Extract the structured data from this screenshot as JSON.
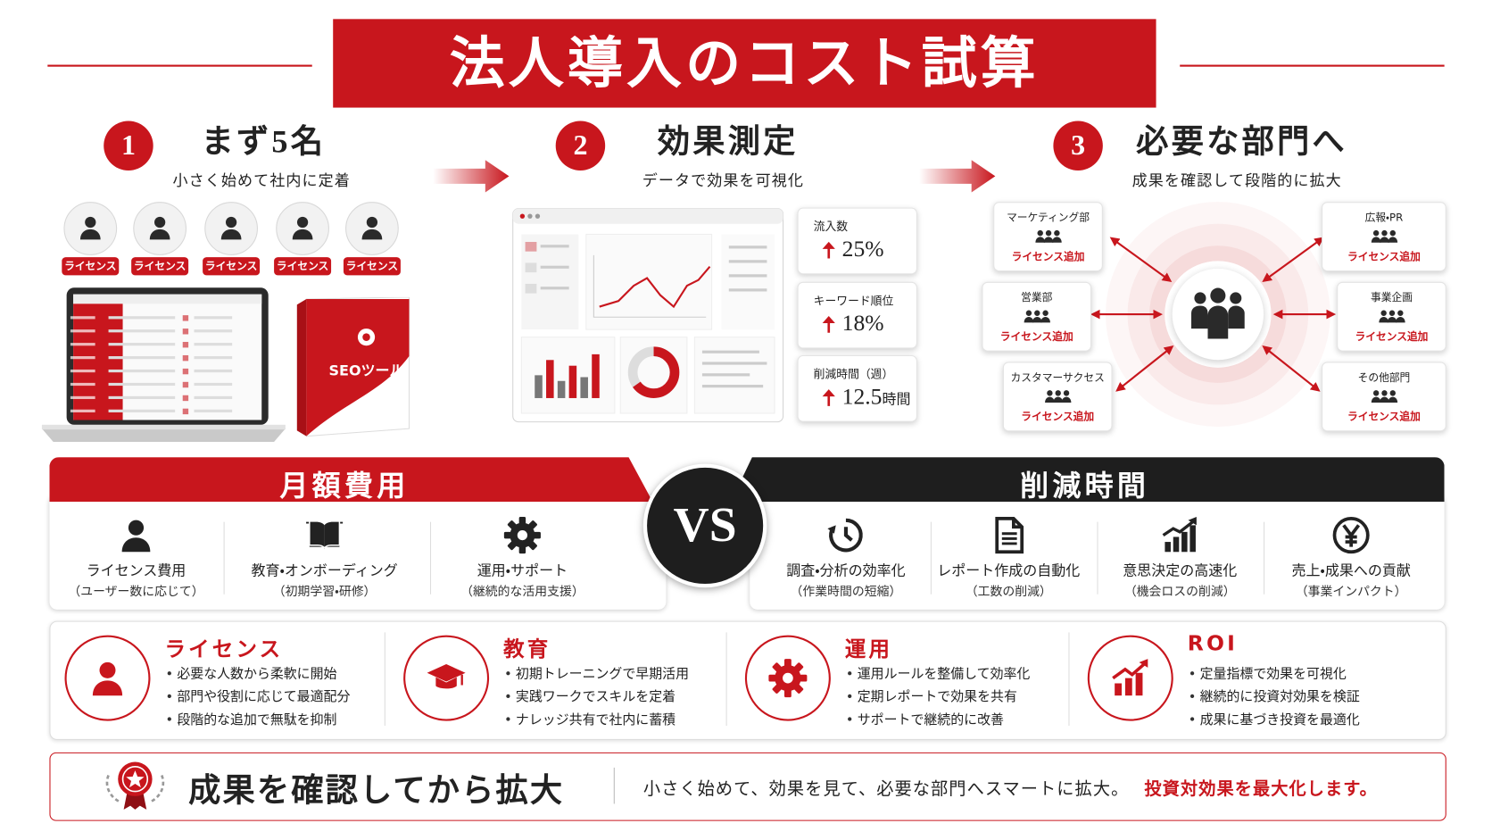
{
  "title": "法人導入のコスト試算",
  "steps": [
    {
      "number": "1",
      "title": "まず5名",
      "subtitle": "小さく始めて社内に定着",
      "licenses": [
        "ライセンス",
        "ライセンス",
        "ライセンス",
        "ライセンス",
        "ライセンス"
      ],
      "product": "SEOツール"
    },
    {
      "number": "2",
      "title": "効果測定",
      "subtitle": "データで効果を可視化",
      "metrics": [
        {
          "label": "流入数",
          "value": "25%"
        },
        {
          "label": "キーワード順位",
          "value": "18%"
        },
        {
          "label": "削減時間（週）",
          "value": "12.5",
          "unit": "時間"
        }
      ]
    },
    {
      "number": "3",
      "title": "必要な部門へ",
      "subtitle": "成果を確認して段階的に拡大",
      "departments": [
        {
          "name": "マーケティング部",
          "action": "ライセンス追加"
        },
        {
          "name": "広報・PR",
          "action": "ライセンス追加"
        },
        {
          "name": "営業部",
          "action": "ライセンス追加"
        },
        {
          "name": "事業企画",
          "action": "ライセンス追加"
        },
        {
          "name": "カスタマーサクセス",
          "action": "ライセンス追加"
        },
        {
          "name": "その他部門",
          "action": "ライセンス追加"
        }
      ]
    }
  ],
  "comparison": {
    "cost": {
      "title": "月額費用",
      "items": [
        {
          "label": "ライセンス費用",
          "note": "（ユーザー数に応じて）"
        },
        {
          "label": "教育・オンボーディング",
          "note": "（初期学習・研修）"
        },
        {
          "label": "運用・サポート",
          "note": "（継続的な活用支援）"
        }
      ]
    },
    "vs": "VS",
    "savings": {
      "title": "削減時間",
      "items": [
        {
          "label": "調査・分析の効率化",
          "note": "（作業時間の短縮）"
        },
        {
          "label": "レポート作成の自動化",
          "note": "（工数の削減）"
        },
        {
          "label": "意思決定の高速化",
          "note": "（機会ロスの削減）"
        },
        {
          "label": "売上・成果への貢献",
          "note": "（事業インパクト）"
        }
      ]
    }
  },
  "details": [
    {
      "title": "ライセンス",
      "points": [
        "必要な人数から柔軟に開始",
        "部門や役割に応じて最適配分",
        "段階的な追加で無駄を抑制"
      ]
    },
    {
      "title": "教育",
      "points": [
        "初期トレーニングで早期活用",
        "実践ワークでスキルを定着",
        "ナレッジ共有で社内に蓄積"
      ]
    },
    {
      "title": "運用",
      "points": [
        "運用ルールを整備して効率化",
        "定期レポートで効果を共有",
        "サポートで継続的に改善"
      ]
    },
    {
      "title": "ROI",
      "points": [
        "定量指標で効果を可視化",
        "継続的に投資対効果を検証",
        "成果に基づき投資を最適化"
      ]
    }
  ],
  "footer": {
    "headline": "成果を確認してから拡大",
    "text": "小さく始めて、効果を見て、必要な部門へスマートに拡大。",
    "highlight": "投資対効果を最大化します。"
  }
}
